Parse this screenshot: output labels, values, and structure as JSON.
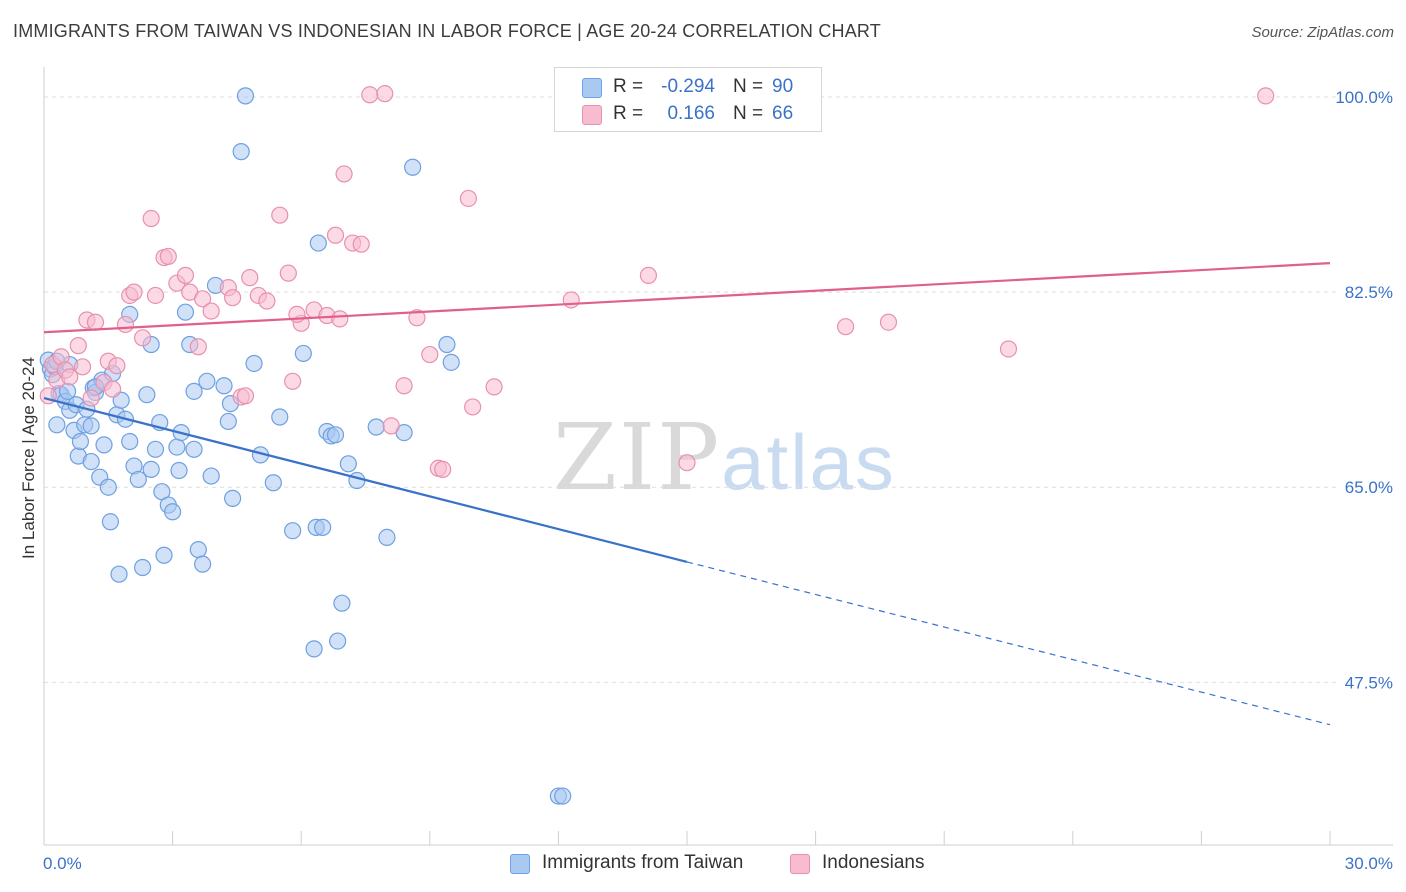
{
  "title": "IMMIGRANTS FROM TAIWAN VS INDONESIAN IN LABOR FORCE | AGE 20-24 CORRELATION CHART",
  "source": "Source: ZipAtlas.com",
  "watermark": {
    "zip": "ZIP",
    "atlas": "atlas"
  },
  "legend": {
    "r_label": "R =",
    "n_label": "N =",
    "rows": [
      {
        "r": "-0.294",
        "n": "90",
        "color": "#a9c9f2",
        "stroke": "#6fa0e0"
      },
      {
        "r": "0.166",
        "n": "66",
        "color": "#f7bcd0",
        "stroke": "#e890ae"
      }
    ]
  },
  "colors": {
    "blue": "#3a72c8",
    "pink": "#e0608a",
    "tick": "#3a72c8"
  },
  "chart_data": {
    "type": "scatter",
    "title": "IMMIGRANTS FROM TAIWAN VS INDONESIAN IN LABOR FORCE | AGE 20-24 CORRELATION CHART",
    "xlabel": "",
    "ylabel": "In Labor Force | Age 20-24",
    "xlim": [
      0,
      30
    ],
    "ylim": [
      33,
      101.5
    ],
    "x_tick_labels": [
      "0.0%",
      "30.0%"
    ],
    "y_ticks": [
      47.5,
      65.0,
      82.5,
      100.0
    ],
    "y_tick_labels": [
      "47.5%",
      "65.0%",
      "82.5%",
      "100.0%"
    ],
    "grid": "horizontal dashed",
    "series": [
      {
        "name": "Immigrants from Taiwan",
        "color": "#a9c9f2",
        "stroke": "#6fa0e0",
        "trend": {
          "x0": 0.0,
          "y0": 73.0,
          "x1": 15.0,
          "y1": 58.3,
          "x2": 30.0,
          "y2": 43.7
        },
        "points": [
          [
            0.1,
            76.4
          ],
          [
            0.15,
            75.6
          ],
          [
            0.2,
            75.1
          ],
          [
            0.25,
            75.8
          ],
          [
            0.3,
            70.6
          ],
          [
            0.35,
            73.4
          ],
          [
            0.4,
            73.3
          ],
          [
            0.5,
            72.7
          ],
          [
            0.55,
            73.6
          ],
          [
            0.6,
            71.9
          ],
          [
            0.7,
            70.1
          ],
          [
            0.75,
            72.4
          ],
          [
            0.8,
            67.8
          ],
          [
            0.85,
            69.1
          ],
          [
            0.95,
            70.6
          ],
          [
            1.0,
            72.0
          ],
          [
            1.1,
            67.3
          ],
          [
            1.15,
            73.9
          ],
          [
            1.2,
            73.5
          ],
          [
            1.3,
            65.9
          ],
          [
            1.35,
            74.6
          ],
          [
            1.4,
            68.8
          ],
          [
            1.5,
            65.0
          ],
          [
            1.55,
            61.9
          ],
          [
            1.6,
            75.2
          ],
          [
            1.7,
            71.5
          ],
          [
            1.75,
            57.2
          ],
          [
            1.8,
            72.8
          ],
          [
            1.9,
            71.1
          ],
          [
            2.0,
            69.1
          ],
          [
            2.1,
            66.9
          ],
          [
            2.2,
            65.7
          ],
          [
            2.3,
            57.8
          ],
          [
            2.4,
            73.3
          ],
          [
            2.5,
            66.6
          ],
          [
            2.6,
            68.4
          ],
          [
            2.7,
            70.8
          ],
          [
            2.75,
            64.6
          ],
          [
            2.8,
            58.9
          ],
          [
            2.9,
            63.4
          ],
          [
            3.0,
            62.8
          ],
          [
            3.1,
            68.6
          ],
          [
            3.15,
            66.5
          ],
          [
            3.2,
            69.9
          ],
          [
            3.3,
            80.7
          ],
          [
            3.4,
            77.8
          ],
          [
            3.5,
            68.4
          ],
          [
            3.6,
            59.4
          ],
          [
            3.7,
            58.1
          ],
          [
            3.8,
            74.5
          ],
          [
            3.9,
            66.0
          ],
          [
            4.0,
            83.1
          ],
          [
            4.3,
            70.9
          ],
          [
            4.35,
            72.5
          ],
          [
            4.4,
            64.0
          ],
          [
            4.6,
            95.1
          ],
          [
            4.7,
            100.1
          ],
          [
            4.9,
            76.1
          ],
          [
            5.05,
            67.9
          ],
          [
            5.35,
            65.4
          ],
          [
            5.8,
            61.1
          ],
          [
            6.05,
            77.0
          ],
          [
            6.3,
            50.5
          ],
          [
            6.35,
            61.4
          ],
          [
            6.4,
            86.9
          ],
          [
            6.5,
            61.4
          ],
          [
            6.6,
            70.0
          ],
          [
            6.7,
            69.6
          ],
          [
            6.8,
            69.7
          ],
          [
            6.85,
            51.2
          ],
          [
            6.95,
            54.6
          ],
          [
            7.1,
            67.1
          ],
          [
            7.3,
            65.6
          ],
          [
            8.0,
            60.5
          ],
          [
            8.4,
            69.9
          ],
          [
            8.6,
            93.7
          ],
          [
            9.4,
            77.8
          ],
          [
            9.5,
            76.2
          ],
          [
            12.0,
            37.3
          ],
          [
            12.1,
            37.3
          ],
          [
            7.75,
            70.4
          ],
          [
            2.0,
            80.5
          ],
          [
            3.5,
            73.6
          ],
          [
            1.2,
            74.0
          ],
          [
            0.6,
            76.0
          ],
          [
            0.3,
            76.3
          ],
          [
            2.5,
            77.8
          ],
          [
            4.2,
            74.1
          ],
          [
            1.1,
            70.5
          ],
          [
            5.5,
            71.3
          ]
        ]
      },
      {
        "name": "Indonesians",
        "color": "#f7bcd0",
        "stroke": "#e890ae",
        "trend": {
          "x0": 0.0,
          "y0": 78.9,
          "x1": 30.0,
          "y1": 85.1
        },
        "points": [
          [
            0.1,
            73.2
          ],
          [
            0.2,
            76.0
          ],
          [
            0.3,
            74.6
          ],
          [
            0.4,
            76.7
          ],
          [
            0.5,
            75.5
          ],
          [
            0.6,
            74.9
          ],
          [
            0.8,
            77.7
          ],
          [
            0.9,
            75.8
          ],
          [
            1.0,
            80.0
          ],
          [
            1.1,
            73.0
          ],
          [
            1.2,
            79.8
          ],
          [
            1.4,
            74.4
          ],
          [
            1.5,
            76.3
          ],
          [
            1.6,
            73.8
          ],
          [
            1.7,
            75.9
          ],
          [
            1.9,
            79.6
          ],
          [
            2.0,
            82.2
          ],
          [
            2.1,
            82.5
          ],
          [
            2.3,
            78.4
          ],
          [
            2.5,
            89.1
          ],
          [
            2.6,
            82.2
          ],
          [
            2.8,
            85.6
          ],
          [
            2.9,
            85.7
          ],
          [
            3.1,
            83.3
          ],
          [
            3.3,
            84.0
          ],
          [
            3.4,
            82.5
          ],
          [
            3.6,
            77.6
          ],
          [
            3.7,
            81.9
          ],
          [
            3.9,
            80.8
          ],
          [
            4.3,
            82.9
          ],
          [
            4.4,
            82.0
          ],
          [
            4.6,
            73.1
          ],
          [
            4.7,
            73.2
          ],
          [
            4.8,
            83.8
          ],
          [
            5.0,
            82.2
          ],
          [
            5.2,
            81.7
          ],
          [
            5.5,
            89.4
          ],
          [
            5.7,
            84.2
          ],
          [
            5.8,
            74.5
          ],
          [
            6.0,
            79.7
          ],
          [
            6.3,
            80.9
          ],
          [
            6.6,
            80.4
          ],
          [
            6.9,
            80.1
          ],
          [
            7.0,
            93.1
          ],
          [
            7.2,
            86.9
          ],
          [
            7.4,
            86.8
          ],
          [
            7.6,
            100.2
          ],
          [
            7.95,
            100.3
          ],
          [
            8.1,
            70.5
          ],
          [
            8.4,
            74.1
          ],
          [
            8.7,
            80.2
          ],
          [
            9.0,
            76.9
          ],
          [
            9.2,
            66.7
          ],
          [
            9.3,
            66.6
          ],
          [
            9.9,
            90.9
          ],
          [
            10.0,
            72.2
          ],
          [
            10.5,
            74.0
          ],
          [
            12.3,
            81.8
          ],
          [
            14.1,
            84.0
          ],
          [
            15.0,
            67.2
          ],
          [
            18.7,
            79.4
          ],
          [
            19.7,
            79.8
          ],
          [
            22.5,
            77.4
          ],
          [
            28.5,
            100.1
          ],
          [
            5.9,
            80.5
          ],
          [
            6.8,
            87.6
          ]
        ]
      }
    ]
  },
  "bottom_legend": [
    "Immigrants from Taiwan",
    "Indonesians"
  ]
}
